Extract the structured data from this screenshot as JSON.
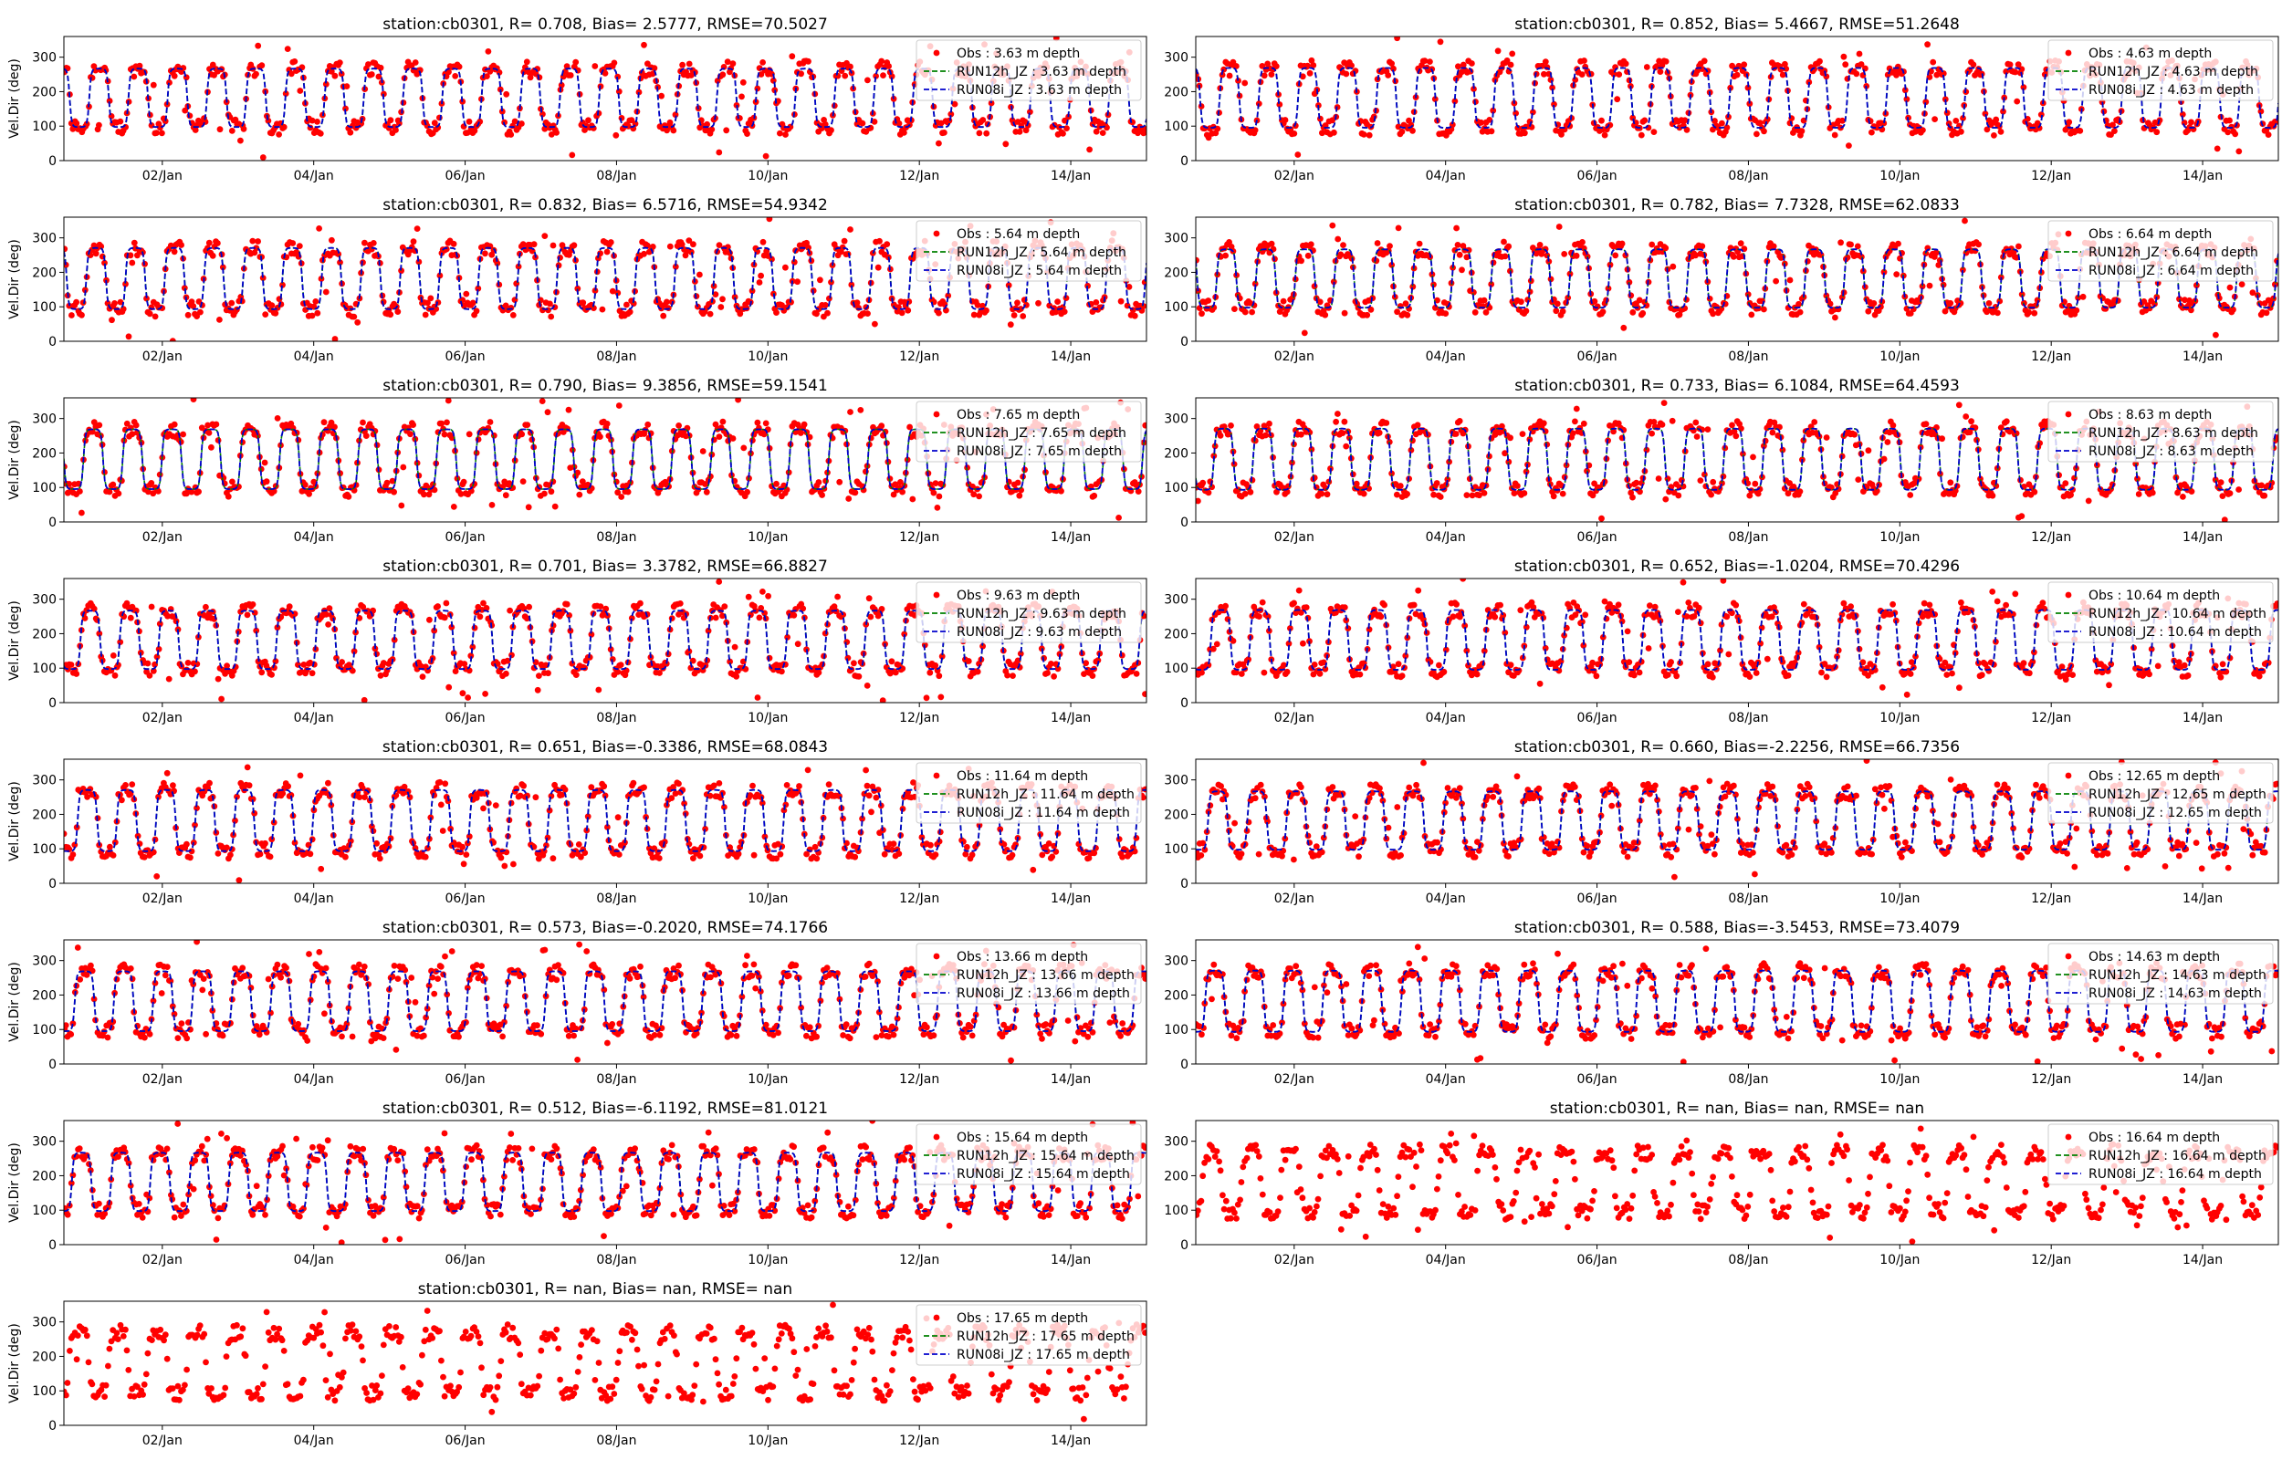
{
  "figure": {
    "station": "cb0301",
    "ylabel": "Vel.Dir (deg)",
    "xticks": [
      "02/Jan",
      "04/Jan",
      "06/Jan",
      "08/Jan",
      "10/Jan",
      "12/Jan",
      "14/Jan"
    ],
    "yticks": [
      "0",
      "100",
      "200",
      "300"
    ],
    "colors": {
      "obs": "#ff0000",
      "run12h": "#008000",
      "run08i": "#0000cc",
      "axis": "#000000"
    }
  },
  "chart_data": [
    {
      "type": "scatter",
      "depth": "3.63",
      "title": "station:cb0301, R= 0.708, Bias= 2.5777, RMSE=70.5027",
      "legend": [
        "Obs : 3.63 m depth",
        "RUN12h_JZ : 3.63 m depth",
        "RUN08i_JZ : 3.63 m depth"
      ],
      "has_model": true,
      "xlabel": "",
      "ylabel": "Vel.Dir (deg)",
      "xlim": [
        0.7,
        15.0
      ],
      "ylim": [
        0,
        360
      ]
    },
    {
      "type": "scatter",
      "depth": "4.63",
      "title": "station:cb0301, R= 0.852, Bias= 5.4667, RMSE=51.2648",
      "legend": [
        "Obs : 4.63 m depth",
        "RUN12h_JZ : 4.63 m depth",
        "RUN08i_JZ : 4.63 m depth"
      ],
      "has_model": true,
      "xlabel": "",
      "ylabel": "Vel.Dir (deg)",
      "xlim": [
        0.7,
        15.0
      ],
      "ylim": [
        0,
        360
      ]
    },
    {
      "type": "scatter",
      "depth": "5.64",
      "title": "station:cb0301, R= 0.832, Bias= 6.5716, RMSE=54.9342",
      "legend": [
        "Obs : 5.64 m depth",
        "RUN12h_JZ : 5.64 m depth",
        "RUN08i_JZ : 5.64 m depth"
      ],
      "has_model": true,
      "xlabel": "",
      "ylabel": "Vel.Dir (deg)",
      "xlim": [
        0.7,
        15.0
      ],
      "ylim": [
        0,
        360
      ]
    },
    {
      "type": "scatter",
      "depth": "6.64",
      "title": "station:cb0301, R= 0.782, Bias= 7.7328, RMSE=62.0833",
      "legend": [
        "Obs : 6.64 m depth",
        "RUN12h_JZ : 6.64 m depth",
        "RUN08i_JZ : 6.64 m depth"
      ],
      "has_model": true,
      "xlabel": "",
      "ylabel": "Vel.Dir (deg)",
      "xlim": [
        0.7,
        15.0
      ],
      "ylim": [
        0,
        360
      ]
    },
    {
      "type": "scatter",
      "depth": "7.65",
      "title": "station:cb0301, R= 0.790, Bias= 9.3856, RMSE=59.1541",
      "legend": [
        "Obs : 7.65 m depth",
        "RUN12h_JZ : 7.65 m depth",
        "RUN08i_JZ : 7.65 m depth"
      ],
      "has_model": true,
      "xlabel": "",
      "ylabel": "Vel.Dir (deg)",
      "xlim": [
        0.7,
        15.0
      ],
      "ylim": [
        0,
        360
      ]
    },
    {
      "type": "scatter",
      "depth": "8.63",
      "title": "station:cb0301, R= 0.733, Bias= 6.1084, RMSE=64.4593",
      "legend": [
        "Obs : 8.63 m depth",
        "RUN12h_JZ : 8.63 m depth",
        "RUN08i_JZ : 8.63 m depth"
      ],
      "has_model": true,
      "xlabel": "",
      "ylabel": "Vel.Dir (deg)",
      "xlim": [
        0.7,
        15.0
      ],
      "ylim": [
        0,
        360
      ]
    },
    {
      "type": "scatter",
      "depth": "9.63",
      "title": "station:cb0301, R= 0.701, Bias= 3.3782, RMSE=66.8827",
      "legend": [
        "Obs : 9.63 m depth",
        "RUN12h_JZ : 9.63 m depth",
        "RUN08i_JZ : 9.63 m depth"
      ],
      "has_model": true,
      "xlabel": "",
      "ylabel": "Vel.Dir (deg)",
      "xlim": [
        0.7,
        15.0
      ],
      "ylim": [
        0,
        360
      ]
    },
    {
      "type": "scatter",
      "depth": "10.64",
      "title": "station:cb0301, R= 0.652, Bias=-1.0204, RMSE=70.4296",
      "legend": [
        "Obs : 10.64 m depth",
        "RUN12h_JZ : 10.64 m depth",
        "RUN08i_JZ : 10.64 m depth"
      ],
      "has_model": true,
      "xlabel": "",
      "ylabel": "Vel.Dir (deg)",
      "xlim": [
        0.7,
        15.0
      ],
      "ylim": [
        0,
        360
      ]
    },
    {
      "type": "scatter",
      "depth": "11.64",
      "title": "station:cb0301, R= 0.651, Bias=-0.3386, RMSE=68.0843",
      "legend": [
        "Obs : 11.64 m depth",
        "RUN12h_JZ : 11.64 m depth",
        "RUN08i_JZ : 11.64 m depth"
      ],
      "has_model": true,
      "xlabel": "",
      "ylabel": "Vel.Dir (deg)",
      "xlim": [
        0.7,
        15.0
      ],
      "ylim": [
        0,
        360
      ]
    },
    {
      "type": "scatter",
      "depth": "12.65",
      "title": "station:cb0301, R= 0.660, Bias=-2.2256, RMSE=66.7356",
      "legend": [
        "Obs : 12.65 m depth",
        "RUN12h_JZ : 12.65 m depth",
        "RUN08i_JZ : 12.65 m depth"
      ],
      "has_model": true,
      "xlabel": "",
      "ylabel": "Vel.Dir (deg)",
      "xlim": [
        0.7,
        15.0
      ],
      "ylim": [
        0,
        360
      ]
    },
    {
      "type": "scatter",
      "depth": "13.66",
      "title": "station:cb0301, R= 0.573, Bias=-0.2020, RMSE=74.1766",
      "legend": [
        "Obs : 13.66 m depth",
        "RUN12h_JZ : 13.66 m depth",
        "RUN08i_JZ : 13.66 m depth"
      ],
      "has_model": true,
      "xlabel": "",
      "ylabel": "Vel.Dir (deg)",
      "xlim": [
        0.7,
        15.0
      ],
      "ylim": [
        0,
        360
      ]
    },
    {
      "type": "scatter",
      "depth": "14.63",
      "title": "station:cb0301, R= 0.588, Bias=-3.5453, RMSE=73.4079",
      "legend": [
        "Obs : 14.63 m depth",
        "RUN12h_JZ : 14.63 m depth",
        "RUN08i_JZ : 14.63 m depth"
      ],
      "has_model": true,
      "xlabel": "",
      "ylabel": "Vel.Dir (deg)",
      "xlim": [
        0.7,
        15.0
      ],
      "ylim": [
        0,
        360
      ]
    },
    {
      "type": "scatter",
      "depth": "15.64",
      "title": "station:cb0301, R= 0.512, Bias=-6.1192, RMSE=81.0121",
      "legend": [
        "Obs : 15.64 m depth",
        "RUN12h_JZ : 15.64 m depth",
        "RUN08i_JZ : 15.64 m depth"
      ],
      "has_model": true,
      "xlabel": "",
      "ylabel": "Vel.Dir (deg)",
      "xlim": [
        0.7,
        15.0
      ],
      "ylim": [
        0,
        360
      ]
    },
    {
      "type": "scatter",
      "depth": "16.64",
      "title": "station:cb0301, R=   nan, Bias=    nan, RMSE=    nan",
      "legend": [
        "Obs : 16.64 m depth",
        "RUN12h_JZ : 16.64 m depth",
        "RUN08i_JZ : 16.64 m depth"
      ],
      "has_model": false,
      "xlabel": "",
      "ylabel": "Vel.Dir (deg)",
      "xlim": [
        0.7,
        15.0
      ],
      "ylim": [
        0,
        360
      ]
    },
    {
      "type": "scatter",
      "depth": "17.65",
      "title": "station:cb0301, R=   nan, Bias=    nan, RMSE=    nan",
      "legend": [
        "Obs : 17.65 m depth",
        "RUN12h_JZ : 17.65 m depth",
        "RUN08i_JZ : 17.65 m depth"
      ],
      "has_model": false,
      "xlabel": "",
      "ylabel": "Vel.Dir (deg)",
      "xlim": [
        0.7,
        15.0
      ],
      "ylim": [
        0,
        360
      ]
    }
  ]
}
